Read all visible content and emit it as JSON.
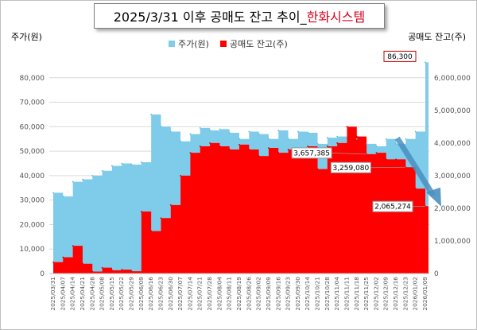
{
  "title": {
    "main": "2025/3/31 이후 공매도 잔고 추이_",
    "highlight": "한화시스템"
  },
  "colors": {
    "price": "#7fcbea",
    "short": "#ff0000",
    "arrow": "#4a90c0",
    "title_highlight": "#d8001b",
    "annotation_border": "#c00000"
  },
  "chart_data": {
    "type": "area",
    "title": "2025/3/31 이후 공매도 잔고 추이_한화시스템",
    "xlabel": "",
    "left_axis": {
      "label": "주가(원)",
      "ylim": [
        0,
        90000
      ],
      "ticks": [
        0,
        10000,
        20000,
        30000,
        40000,
        50000,
        60000,
        70000,
        80000
      ],
      "tick_labels": [
        "0",
        "10,000",
        "20,000",
        "30,000",
        "40,000",
        "50,000",
        "60,000",
        "70,000",
        "80,000"
      ]
    },
    "right_axis": {
      "label": "공매도 잔고(주)",
      "ylim": [
        0,
        6750000
      ],
      "ticks": [
        0,
        1000000,
        2000000,
        3000000,
        4000000,
        5000000,
        6000000
      ],
      "tick_labels": [
        "0",
        "1,000,000",
        "2,000,000",
        "3,000,000",
        "4,000,000",
        "5,000,000",
        "6,000,000"
      ]
    },
    "legend": [
      "주가(원)",
      "공매도 잔고(주)"
    ],
    "legend_position": "top",
    "grid": true,
    "x_tick_labels": [
      "2025/03/31",
      "2025/04/07",
      "2025/04/14",
      "2025/04/21",
      "2025/04/28",
      "2025/05/08",
      "2025/05/15",
      "2025/05/22",
      "2025/05/29",
      "2025/06/09",
      "2025/06/16",
      "2025/06/23",
      "2025/06/30",
      "2025/07/07",
      "2025/07/14",
      "2025/07/21",
      "2025/07/28",
      "2025/08/04",
      "2025/08/11",
      "2025/08/19",
      "2025/08/26",
      "2025/09/02",
      "2025/09/09",
      "2025/09/16",
      "2025/09/23",
      "2025/09/30",
      "2025/10/14",
      "2025/10/21",
      "2025/10/28",
      "2025/11/04",
      "2025/11/11",
      "2025/11/18",
      "2025/11/25",
      "2025/12/02",
      "2025/12/09",
      "2025/12/16",
      "2025/12/23",
      "2026/01/02",
      "2026/01/09"
    ],
    "series": [
      {
        "name": "주가(원)",
        "axis": "left",
        "points": [
          [
            0,
            33000
          ],
          [
            1,
            31500
          ],
          [
            2,
            37500
          ],
          [
            3,
            38500
          ],
          [
            4,
            40000
          ],
          [
            5,
            42000
          ],
          [
            6,
            44000
          ],
          [
            7,
            45000
          ],
          [
            8,
            44500
          ],
          [
            9,
            45500
          ],
          [
            10,
            65000
          ],
          [
            11,
            60000
          ],
          [
            12,
            58000
          ],
          [
            13,
            54000
          ],
          [
            14,
            57000
          ],
          [
            15,
            59500
          ],
          [
            16,
            58500
          ],
          [
            17,
            59000
          ],
          [
            18,
            57500
          ],
          [
            19,
            55000
          ],
          [
            20,
            58000
          ],
          [
            21,
            57000
          ],
          [
            22,
            55000
          ],
          [
            23,
            58500
          ],
          [
            24,
            55000
          ],
          [
            25,
            58000
          ],
          [
            26,
            57500
          ],
          [
            27,
            53000
          ],
          [
            28,
            55500
          ],
          [
            29,
            56000
          ],
          [
            30,
            57000
          ],
          [
            31,
            55000
          ],
          [
            32,
            53000
          ],
          [
            33,
            52000
          ],
          [
            34,
            55000
          ],
          [
            35,
            53000
          ],
          [
            36,
            55000
          ],
          [
            37,
            58000
          ],
          [
            38,
            86300
          ]
        ]
      },
      {
        "name": "공매도 잔고(주)",
        "axis": "right",
        "points": [
          [
            0,
            350000
          ],
          [
            1,
            500000
          ],
          [
            2,
            850000
          ],
          [
            3,
            300000
          ],
          [
            4,
            60000
          ],
          [
            5,
            180000
          ],
          [
            6,
            100000
          ],
          [
            7,
            120000
          ],
          [
            8,
            70000
          ],
          [
            9,
            1900000
          ],
          [
            10,
            1300000
          ],
          [
            11,
            1700000
          ],
          [
            12,
            2100000
          ],
          [
            13,
            3000000
          ],
          [
            14,
            3700000
          ],
          [
            15,
            3900000
          ],
          [
            16,
            4000000
          ],
          [
            17,
            3900000
          ],
          [
            18,
            3800000
          ],
          [
            19,
            3950000
          ],
          [
            20,
            3800000
          ],
          [
            21,
            3600000
          ],
          [
            22,
            3850000
          ],
          [
            23,
            3700000
          ],
          [
            24,
            3800000
          ],
          [
            25,
            3650000
          ],
          [
            26,
            3900000
          ],
          [
            27,
            3200000
          ],
          [
            28,
            3900000
          ],
          [
            29,
            4000000
          ],
          [
            30,
            4500000
          ],
          [
            31,
            4200000
          ],
          [
            32,
            3657385
          ],
          [
            33,
            3700000
          ],
          [
            34,
            3500000
          ],
          [
            35,
            3500000
          ],
          [
            36,
            3259080
          ],
          [
            37,
            2600000
          ],
          [
            38,
            2065274
          ]
        ]
      }
    ],
    "annotations": [
      {
        "text": "86,300",
        "series": "주가(원)",
        "x": 38,
        "boxed": true
      },
      {
        "text": "3,657,385",
        "series": "공매도 잔고(주)",
        "x": 32
      },
      {
        "text": "3,259,080",
        "series": "공매도 잔고(주)",
        "x": 36
      },
      {
        "text": "2,065,274",
        "series": "공매도 잔고(주)",
        "x": 38
      }
    ]
  }
}
